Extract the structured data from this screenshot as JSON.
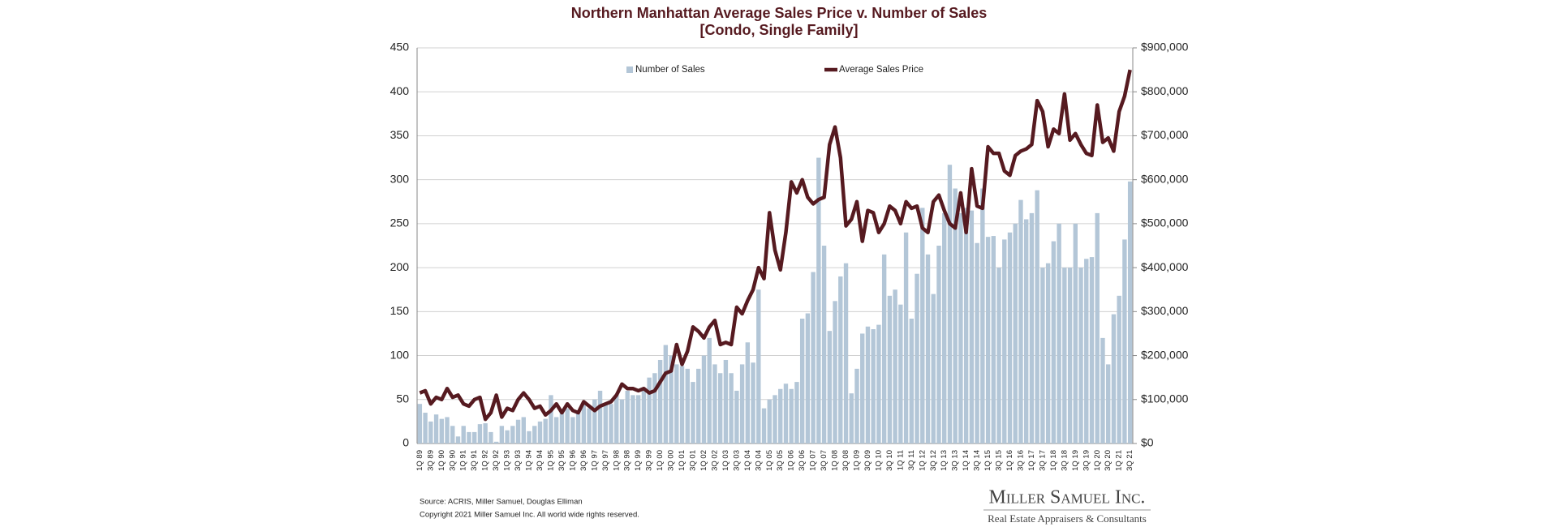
{
  "chart_data": {
    "type": "bar_line",
    "title": "Northern Manhattan Average Sales Price v. Number of Sales",
    "subtitle": "[Condo, Single Family]",
    "source": "Source: ACRIS, Miller Samuel, Douglas Elliman",
    "copyright": "Copyright 2021 Miller Samuel Inc.  All world wide rights reserved.",
    "brand": "Miller Samuel Inc.",
    "brand_tagline": "Real Estate Appraisers & Consultants",
    "categories": [
      "1Q 89",
      null,
      "3Q 89",
      null,
      "1Q 90",
      null,
      "3Q 90",
      null,
      "1Q 91",
      null,
      "3Q 91",
      null,
      "1Q 92",
      null,
      "3Q 92",
      null,
      "1Q 93",
      null,
      "3Q 93",
      null,
      "1Q 94",
      null,
      "3Q 94",
      null,
      "1Q 95",
      null,
      "3Q 95",
      null,
      "1Q 96",
      null,
      "3Q 96",
      null,
      "1Q 97",
      null,
      "3Q 97",
      null,
      "1Q 98",
      null,
      "3Q 98",
      null,
      "1Q 99",
      null,
      "3Q 99",
      null,
      "1Q 00",
      null,
      "3Q 00",
      null,
      "1Q 01",
      null,
      "3Q 01",
      null,
      "1Q 02",
      null,
      "3Q 02",
      null,
      "1Q 03",
      null,
      "3Q 03",
      null,
      "1Q 04",
      null,
      "3Q 04",
      null,
      "1Q 05",
      null,
      "3Q 05",
      null,
      "1Q 06",
      null,
      "3Q 06",
      null,
      "1Q 07",
      null,
      "3Q 07",
      null,
      "1Q 08",
      null,
      "3Q 08",
      null,
      "1Q 09",
      null,
      "3Q 09",
      null,
      "1Q 10",
      null,
      "3Q 10",
      null,
      "1Q 11",
      null,
      "3Q 11",
      null,
      "1Q 12",
      null,
      "3Q 12",
      null,
      "1Q 13",
      null,
      "3Q 13",
      null,
      "1Q 14",
      null,
      "3Q 14",
      null,
      "1Q 15",
      null,
      "3Q 15",
      null,
      "1Q 16",
      null,
      "3Q 16",
      null,
      "1Q 17",
      null,
      "3Q 17",
      null,
      "1Q 18",
      null,
      "3Q 18",
      null,
      "1Q 19",
      null,
      "3Q 19",
      null,
      "1Q 20",
      null,
      "3Q 20",
      null,
      "1Q 21",
      null,
      "3Q 21"
    ],
    "series": [
      {
        "name": "Number of Sales",
        "type": "bar",
        "color": "#b3c6d7",
        "axis": "y",
        "values": [
          45,
          35,
          25,
          33,
          28,
          30,
          20,
          8,
          20,
          13,
          13,
          22,
          23,
          13,
          2,
          20,
          15,
          20,
          27,
          30,
          14,
          20,
          25,
          28,
          55,
          30,
          35,
          40,
          30,
          35,
          45,
          40,
          50,
          60,
          45,
          45,
          55,
          50,
          60,
          55,
          55,
          60,
          75,
          80,
          95,
          112,
          100,
          90,
          88,
          85,
          70,
          85,
          100,
          120,
          90,
          80,
          95,
          80,
          60,
          90,
          115,
          92,
          175,
          40,
          50,
          55,
          62,
          68,
          62,
          70,
          142,
          148,
          195,
          325,
          225,
          128,
          162,
          190,
          205,
          57,
          85,
          125,
          133,
          130,
          135,
          215,
          168,
          175,
          158,
          240,
          142,
          193,
          268,
          215,
          170,
          225,
          262,
          317,
          290,
          262,
          268,
          265,
          228,
          290,
          235,
          236,
          200,
          232,
          240,
          250,
          277,
          255,
          262,
          288,
          200,
          205,
          230,
          250,
          200,
          200,
          250,
          200,
          210,
          212,
          262,
          120,
          90,
          147,
          168,
          232,
          298
        ]
      },
      {
        "name": "Average Sales Price",
        "type": "line",
        "color": "#561a20",
        "axis": "y2",
        "values": [
          115000,
          120000,
          90000,
          105000,
          100000,
          125000,
          105000,
          110000,
          90000,
          85000,
          100000,
          105000,
          55000,
          70000,
          110000,
          60000,
          80000,
          75000,
          100000,
          115000,
          100000,
          80000,
          85000,
          65000,
          75000,
          90000,
          70000,
          90000,
          75000,
          70000,
          95000,
          85000,
          75000,
          85000,
          90000,
          95000,
          110000,
          135000,
          125000,
          125000,
          120000,
          125000,
          115000,
          120000,
          140000,
          160000,
          165000,
          225000,
          180000,
          210000,
          265000,
          255000,
          240000,
          265000,
          280000,
          225000,
          230000,
          225000,
          310000,
          295000,
          325000,
          350000,
          400000,
          375000,
          525000,
          440000,
          395000,
          480000,
          595000,
          570000,
          600000,
          560000,
          545000,
          555000,
          560000,
          680000,
          720000,
          650000,
          495000,
          510000,
          550000,
          460000,
          530000,
          525000,
          480000,
          500000,
          540000,
          530000,
          500000,
          550000,
          535000,
          540000,
          490000,
          480000,
          550000,
          565000,
          530000,
          500000,
          490000,
          570000,
          480000,
          625000,
          540000,
          535000,
          675000,
          660000,
          660000,
          620000,
          610000,
          655000,
          665000,
          670000,
          680000,
          780000,
          755000,
          675000,
          715000,
          705000,
          795000,
          690000,
          705000,
          680000,
          660000,
          655000,
          770000,
          685000,
          695000,
          665000,
          755000,
          790000,
          850000
        ]
      }
    ],
    "ylim": [
      0,
      450
    ],
    "yticks": [
      0,
      50,
      100,
      150,
      200,
      250,
      300,
      350,
      400,
      450
    ],
    "y2lim": [
      0,
      900000
    ],
    "y2ticks": [
      {
        "value": 0,
        "label": "$0"
      },
      {
        "value": 100000,
        "label": "$100,000"
      },
      {
        "value": 200000,
        "label": "$200,000"
      },
      {
        "value": 300000,
        "label": "$300,000"
      },
      {
        "value": 400000,
        "label": "$400,000"
      },
      {
        "value": 500000,
        "label": "$500,000"
      },
      {
        "value": 600000,
        "label": "$600,000"
      },
      {
        "value": 700000,
        "label": "$700,000"
      },
      {
        "value": 800000,
        "label": "$800,000"
      },
      {
        "value": 900000,
        "label": "$900,000"
      }
    ],
    "grid": true,
    "legend": "top"
  }
}
